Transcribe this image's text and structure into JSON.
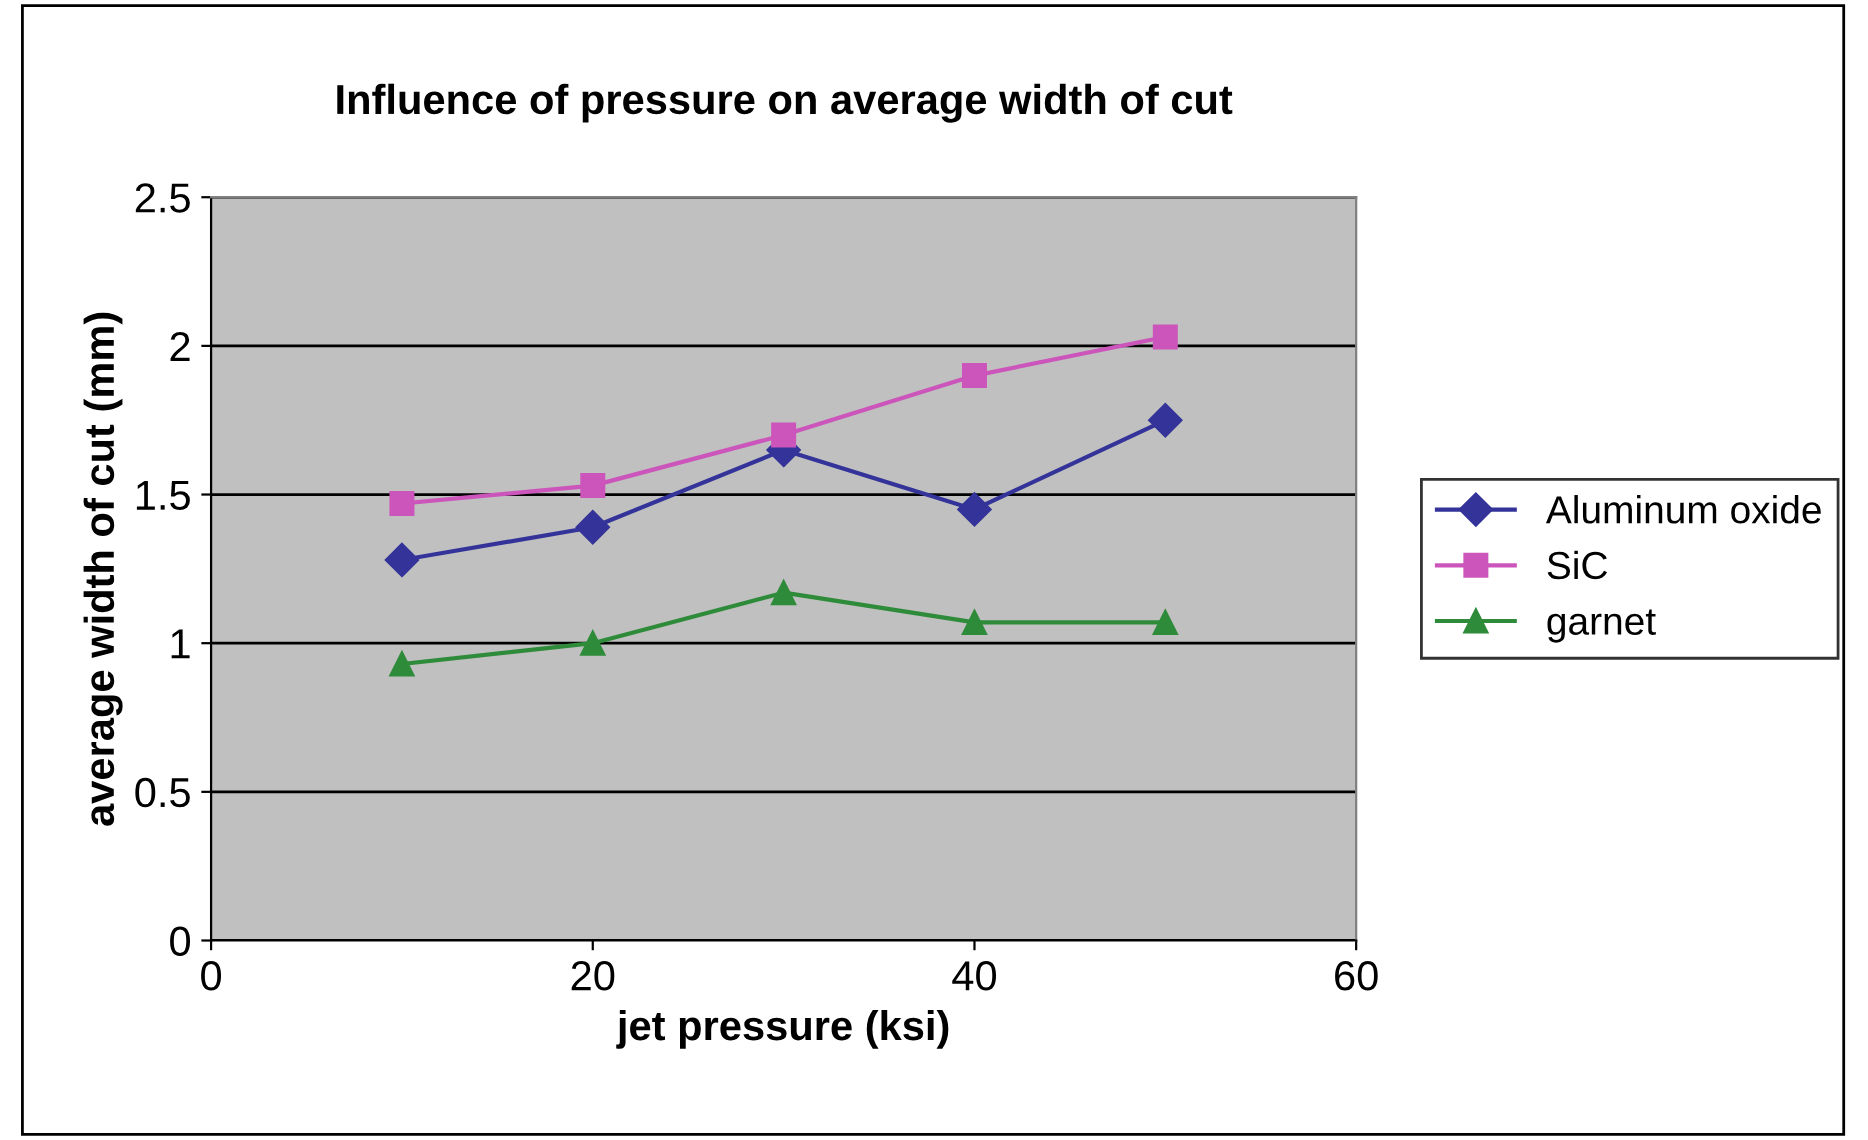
{
  "chart_data": {
    "type": "line",
    "title": "Influence of pressure on average width of cut",
    "xlabel": "jet pressure (ksi)",
    "ylabel": "average width of cut (mm)",
    "x": [
      10,
      20,
      30,
      40,
      50
    ],
    "series": [
      {
        "name": "Aluminum oxide",
        "color": "#333399",
        "marker": "diamond",
        "values": [
          1.28,
          1.39,
          1.65,
          1.45,
          1.75
        ]
      },
      {
        "name": "SiC",
        "color": "#cc55bb",
        "marker": "square",
        "values": [
          1.47,
          1.53,
          1.7,
          1.9,
          2.03
        ]
      },
      {
        "name": "garnet",
        "color": "#2e8b3a",
        "marker": "triangle",
        "values": [
          0.93,
          1.0,
          1.17,
          1.07,
          1.07
        ]
      }
    ],
    "xlim": [
      0,
      60
    ],
    "xticks": [
      0,
      20,
      40,
      60
    ],
    "ylim": [
      0,
      2.5
    ],
    "yticks": [
      0,
      0.5,
      1,
      1.5,
      2,
      2.5
    ],
    "grid": "y",
    "legend": "right",
    "line_style": "solid"
  }
}
